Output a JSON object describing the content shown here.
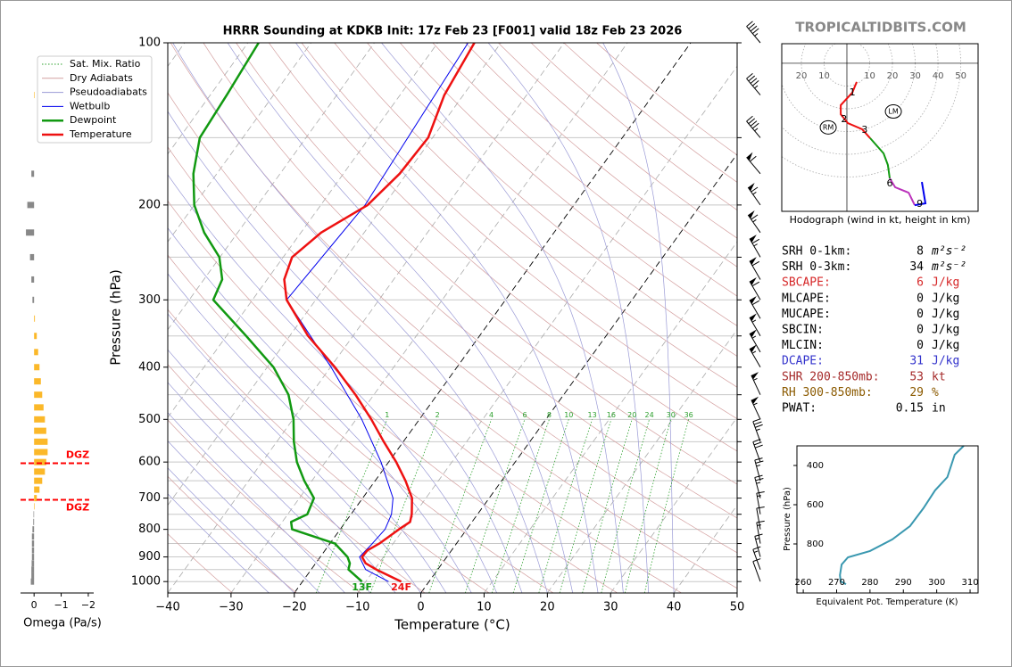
{
  "chart_data": [
    {
      "type": "skewt",
      "title": "HRRR Sounding at KDKB Init: 17z Feb 23 [F001] valid 18z Feb 23 2026",
      "xlabel": "Temperature (°C)",
      "ylabel": "Pressure (hPa)",
      "xlim": [
        -40,
        50
      ],
      "ylim": [
        1050,
        100
      ],
      "log_y": true,
      "xticks": [
        {
          "value": -40,
          "label": "−40"
        },
        {
          "value": -30,
          "label": "−30"
        },
        {
          "value": -20,
          "label": "−20"
        },
        {
          "value": -10,
          "label": "−10"
        },
        0,
        10,
        20,
        30,
        40,
        50
      ],
      "yticks": [
        100,
        200,
        300,
        400,
        500,
        600,
        700,
        800,
        900,
        1000
      ],
      "yticks_minor": [
        150,
        250,
        350,
        450,
        550,
        650,
        750,
        850,
        950
      ],
      "legend_loc": "upper left",
      "background": [
        {
          "name": "Sat. Mix. Ratio",
          "color": "#2ca02c"
        },
        {
          "name": "Dry Adiabats",
          "color": "#d4a0a0"
        },
        {
          "name": "Pseudoadiabats",
          "color": "#9a9ad6"
        }
      ],
      "mixing_ratios": [
        1,
        2,
        4,
        6,
        8,
        10,
        13,
        16,
        20,
        24,
        30,
        36
      ],
      "series": [
        {
          "name": "Wetbulb",
          "color": "#0000ee",
          "width": 1,
          "p": [
            1000,
            950,
            900,
            850,
            800,
            750,
            700,
            600,
            500,
            400,
            300,
            200,
            100
          ],
          "values": [
            -6.4,
            -11.4,
            -13.8,
            -13.3,
            -12.9,
            -13.6,
            -15.2,
            -21.2,
            -29.1,
            -39.9,
            -54.6,
            -53,
            -55.2
          ]
        },
        {
          "name": "Dewpoint",
          "color": "#119911",
          "width": 2.5,
          "p": [
            1000,
            950,
            925,
            900,
            850,
            800,
            775,
            750,
            700,
            650,
            600,
            550,
            500,
            450,
            400,
            350,
            300,
            275,
            250,
            225,
            200,
            175,
            150,
            125,
            100
          ],
          "values": [
            -10.6,
            -14.1,
            -14.6,
            -15.7,
            -19.2,
            -27.6,
            -28.6,
            -26.9,
            -27.7,
            -31.2,
            -34.5,
            -37.3,
            -39.9,
            -43.5,
            -49,
            -56.9,
            -66.2,
            -67.1,
            -70.1,
            -75.3,
            -80,
            -83.7,
            -86.8,
            -87.4,
            -88.3
          ]
        },
        {
          "name": "Temperature",
          "color": "#ee1111",
          "width": 2.5,
          "p": [
            1000,
            950,
            925,
            900,
            875,
            850,
            800,
            775,
            750,
            700,
            650,
            600,
            550,
            500,
            450,
            400,
            350,
            300,
            275,
            250,
            225,
            200,
            175,
            150,
            125,
            100
          ],
          "values": [
            -4.4,
            -9.7,
            -12.1,
            -13.4,
            -13.3,
            -12.2,
            -10.7,
            -9.8,
            -10.4,
            -12.2,
            -15.2,
            -18.8,
            -23.1,
            -27.6,
            -32.9,
            -39.3,
            -47.1,
            -54.6,
            -57.3,
            -58.6,
            -56.8,
            -52.6,
            -51.1,
            -50.7,
            -53,
            -54.2
          ]
        }
      ],
      "annotations": [
        {
          "text": "13F",
          "t": -10.6,
          "p": 1000,
          "color": "#119911"
        },
        {
          "text": "24F",
          "t": -4.4,
          "p": 1000,
          "color": "#ee1111"
        }
      ],
      "barbs": {
        "p": [
          100,
          125,
          150,
          175,
          200,
          225,
          250,
          275,
          300,
          325,
          350,
          375,
          400,
          450,
          500,
          550,
          600,
          650,
          700,
          750,
          800,
          850,
          900,
          950,
          1000
        ],
        "dir": [
          320,
          320,
          320,
          320,
          325,
          325,
          330,
          330,
          330,
          330,
          330,
          330,
          330,
          335,
          335,
          340,
          340,
          345,
          345,
          350,
          350,
          350,
          345,
          340,
          340
        ],
        "spd": [
          45,
          45,
          45,
          60,
          65,
          65,
          65,
          60,
          60,
          60,
          55,
          55,
          55,
          55,
          55,
          35,
          30,
          25,
          25,
          15,
          10,
          15,
          15,
          15,
          10
        ]
      }
    },
    {
      "type": "bar",
      "orientation": "horizontal",
      "xlabel": "Omega (Pa/s)",
      "xlim": [
        0.5,
        -2.2
      ],
      "xticks": [
        0,
        {
          "value": -1,
          "label": "−1"
        },
        {
          "value": -2,
          "label": "−2"
        }
      ],
      "p": [
        125,
        175,
        200,
        225,
        250,
        275,
        300,
        325,
        350,
        375,
        400,
        425,
        450,
        475,
        500,
        525,
        550,
        575,
        600,
        625,
        650,
        675,
        700,
        725,
        750,
        775,
        800,
        825,
        850,
        875,
        900,
        925,
        950,
        975,
        1000
      ],
      "values": [
        -0.02,
        0.1,
        0.25,
        0.3,
        0.15,
        0.1,
        0.06,
        -0.03,
        -0.1,
        -0.15,
        -0.2,
        -0.25,
        -0.3,
        -0.35,
        -0.4,
        -0.45,
        -0.5,
        -0.5,
        -0.45,
        -0.4,
        -0.3,
        -0.2,
        -0.1,
        -0.02,
        0.02,
        0.03,
        0.06,
        0.08,
        0.08,
        0.08,
        0.08,
        0.09,
        0.1,
        0.1,
        0.12
      ],
      "neg_color": "#fbb829",
      "pos_color": "#888888",
      "dgz": {
        "label": "DGZ",
        "p": [
          603,
          705
        ],
        "color": "#ff0000"
      }
    },
    {
      "type": "hodograph",
      "xlabel": "Hodograph (wind in kt, height in km)",
      "xlim": [
        -28.6,
        57.6
      ],
      "ylim": [
        -65.1,
        8.6
      ],
      "xticks": [
        {
          "value": -20,
          "label": "20"
        },
        {
          "value": -10,
          "label": "10"
        },
        10,
        20,
        30,
        40,
        50
      ],
      "series": [
        {
          "color": "#ee1111",
          "u": [
            4.3,
            2.4,
            -2.7,
            -2.7,
            0.4,
            6.7,
            10.2
          ],
          "v": [
            -8.2,
            -12.9,
            -18.4,
            -22.4,
            -26.3,
            -29,
            -32.9
          ]
        },
        {
          "color": "#119911",
          "u": [
            10.2,
            16.1,
            18,
            18.8
          ],
          "v": [
            -32.9,
            -39.6,
            -44.7,
            -50.6
          ]
        },
        {
          "color": "#bb33bb",
          "u": [
            18.8,
            21.2,
            27.1,
            29.8
          ],
          "v": [
            -50.6,
            -54.5,
            -56.9,
            -62.4
          ]
        },
        {
          "color": "#0000ee",
          "u": [
            29.8,
            34.5,
            32.9
          ],
          "v": [
            -62.4,
            -61.6,
            -52.2
          ]
        }
      ],
      "heights": [
        1,
        2,
        3,
        6,
        9
      ],
      "height_u": [
        2.4,
        -1.2,
        7.8,
        18.8,
        32
      ],
      "height_v": [
        -12.9,
        -24.7,
        -29.4,
        -53,
        -62
      ],
      "motions": [
        {
          "label": "RM",
          "u": -8.2,
          "v": -28.2
        },
        {
          "label": "LM",
          "u": 20.4,
          "v": -21.2
        }
      ]
    },
    {
      "type": "line",
      "xlabel": "Equivalent Pot. Temperature (K)",
      "ylabel": "Pressure (hPa)",
      "xlim": [
        258.1,
        312.4
      ],
      "ylim": [
        1050,
        300
      ],
      "xticks": [
        260,
        270,
        280,
        290,
        300,
        310
      ],
      "yticks": [
        400,
        600,
        800
      ],
      "color": "#3a98b0",
      "p": [
        300,
        345,
        459,
        527,
        618,
        709,
        777,
        836,
        868,
        905,
        959,
        991,
        1005
      ],
      "values": [
        308.1,
        305.4,
        303.2,
        299.5,
        296,
        292,
        286.7,
        280,
        273.4,
        271.5,
        271,
        271.2,
        272.8
      ]
    }
  ],
  "stats": {
    "rows": [
      {
        "label": "SRH 0-1km:",
        "value": 8,
        "unit": "m²s⁻²",
        "color": "#000000"
      },
      {
        "label": "SRH 0-3km:",
        "value": 34,
        "unit": "m²s⁻²",
        "color": "#000000"
      },
      {
        "label": "SBCAPE:",
        "value": 6,
        "unit": "J/kg",
        "color": "#d62728"
      },
      {
        "label": "MLCAPE:",
        "value": 0,
        "unit": "J/kg",
        "color": "#000000"
      },
      {
        "label": "MUCAPE:",
        "value": 0,
        "unit": "J/kg",
        "color": "#000000"
      },
      {
        "label": "SBCIN:",
        "value": 0,
        "unit": "J/kg",
        "color": "#000000"
      },
      {
        "label": "MLCIN:",
        "value": 0,
        "unit": "J/kg",
        "color": "#000000"
      },
      {
        "label": "DCAPE:",
        "value": 31,
        "unit": "J/kg",
        "color": "#3333cc"
      },
      {
        "label": "SHR 200-850mb:",
        "value": 53,
        "unit": "kt",
        "color": "#a52a2a"
      },
      {
        "label": "RH 300-850mb:",
        "value": 29,
        "unit": "%",
        "color": "#8b5a00"
      },
      {
        "label": "PWAT:",
        "value": 0.15,
        "unit": "in",
        "color": "#000000"
      }
    ]
  },
  "watermark": "TROPICALTIDBITS.COM"
}
